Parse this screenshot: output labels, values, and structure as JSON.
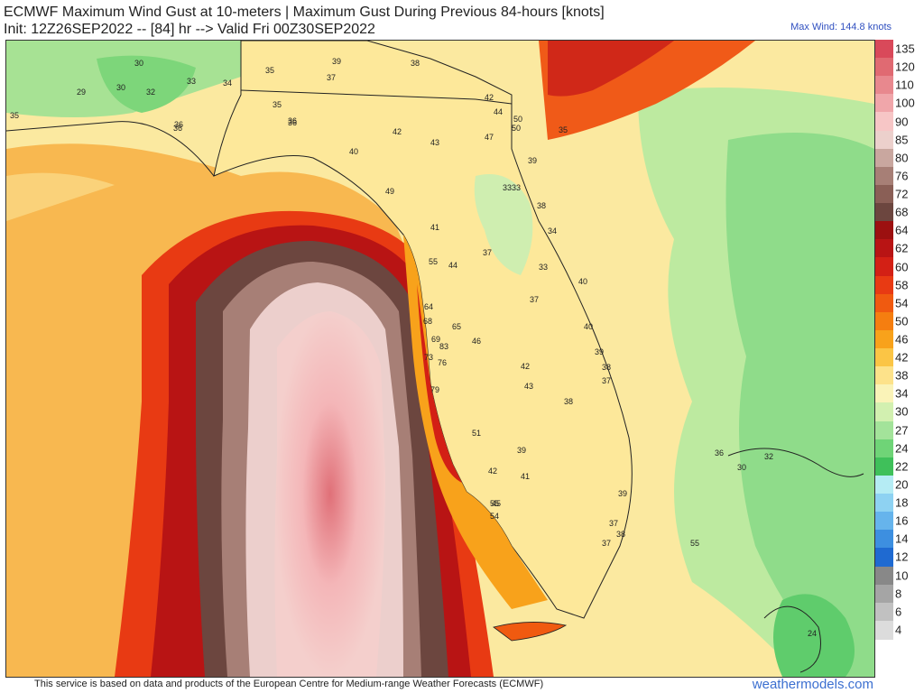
{
  "header": {
    "title_line1": "ECMWF Maximum Wind Gust at 10-meters | Maximum Gust During Previous 84-hours [knots]",
    "title_line2": "Init: 12Z26SEP2022 -- [84] hr --> Valid Fri 00Z30SEP2022",
    "max_wind": "Max Wind: 144.8 knots"
  },
  "colorbar": {
    "labels": [
      "135",
      "120",
      "110",
      "100",
      "90",
      "85",
      "80",
      "76",
      "72",
      "68",
      "64",
      "62",
      "60",
      "58",
      "54",
      "50",
      "46",
      "42",
      "38",
      "34",
      "30",
      "27",
      "24",
      "22",
      "20",
      "18",
      "16",
      "14",
      "12",
      "10",
      "8",
      "6",
      "4"
    ],
    "colors": [
      "#d9495a",
      "#e06a72",
      "#e8888e",
      "#f0a6aa",
      "#f7c6c6",
      "#ecd0cc",
      "#c9a79f",
      "#a77f76",
      "#8a5f56",
      "#6c463f",
      "#9c1010",
      "#b81414",
      "#d32015",
      "#e83a13",
      "#f05a10",
      "#f57e10",
      "#f8a21b",
      "#fbc545",
      "#fde28a",
      "#faf3b8",
      "#d2f0b0",
      "#a3e39a",
      "#6fd477",
      "#3fc05a",
      "#b5ecf4",
      "#8ed2f2",
      "#66b4ec",
      "#3d8fe0",
      "#1f6ad1",
      "#888888",
      "#a5a5a5",
      "#c1c1c1",
      "#dcdcdc"
    ]
  },
  "map": {
    "labels": [
      "30",
      "29",
      "30",
      "32",
      "33",
      "34",
      "35",
      "36",
      "37",
      "38",
      "39",
      "40",
      "41",
      "42",
      "43",
      "44",
      "46",
      "47",
      "49",
      "50",
      "51",
      "55",
      "64",
      "68",
      "69",
      "73",
      "76",
      "79",
      "83",
      "65",
      "45",
      "24",
      "55",
      "38",
      "33",
      "36",
      "30",
      "32",
      "35",
      "36",
      "36",
      "35",
      "42",
      "42",
      "44",
      "50",
      "39",
      "37",
      "35",
      "37",
      "33",
      "34",
      "33",
      "40",
      "40",
      "38",
      "39",
      "37",
      "38",
      "43",
      "41",
      "39",
      "42",
      "39",
      "55",
      "54",
      "37",
      "37",
      "38",
      "36"
    ]
  },
  "footer": {
    "attribution": "This service is based on data and products of the European Centre for Medium-range Weather Forecasts (ECMWF)",
    "brand": "weathermodels.com"
  }
}
